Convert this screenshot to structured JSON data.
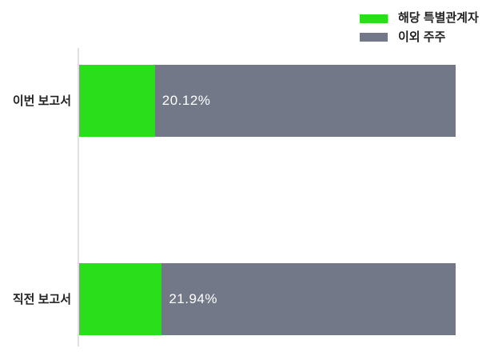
{
  "chart_data": {
    "type": "bar",
    "orientation": "horizontal",
    "stacked": true,
    "title": "",
    "xlabel": "",
    "ylabel": "",
    "xlim": [
      0,
      100
    ],
    "grid": false,
    "legend_position": "top-right",
    "categories": [
      "이번 보고서",
      "직전 보고서"
    ],
    "series": [
      {
        "name": "해당 특별관계자",
        "color": "#2bde1c",
        "values": [
          20.12,
          21.94
        ]
      },
      {
        "name": "이외 주주",
        "color": "#727888",
        "values": [
          79.88,
          78.06
        ]
      }
    ],
    "value_labels": [
      "20.12%",
      "21.94%"
    ]
  },
  "colors": {
    "green": "#2bde1c",
    "gray": "#727888",
    "axis": "#e0e0e0",
    "label_text": "#222222",
    "value_text": "#ffffff",
    "background": "#ffffff"
  }
}
